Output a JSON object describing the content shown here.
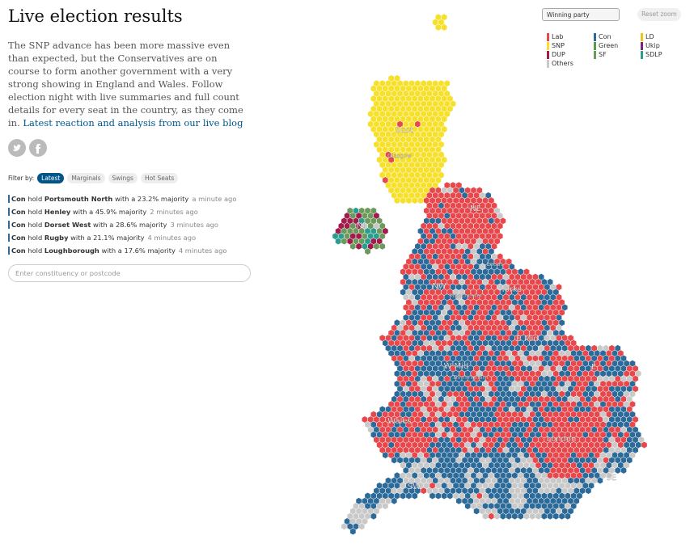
{
  "header": {
    "title": "Live election results",
    "intro": "The SNP advance has been more massive even than expected, but the Conservatives are on course to form another government with a very strong showing in England and Wales. Follow election night with live summaries and full count details for every seat in the country, as they come in.",
    "link": "Latest reaction and analysis from our live blog"
  },
  "filter": {
    "label": "Filter by:",
    "options": [
      "Latest",
      "Marginals",
      "Swings",
      "Hot Seats"
    ]
  },
  "results": [
    {
      "party": "Con",
      "action": "hold",
      "seat": "Portsmouth North",
      "detail": "with a 23.2% majority",
      "time": "a minute ago"
    },
    {
      "party": "Con",
      "action": "hold",
      "seat": "Henley",
      "detail": "with a 45.9% majority",
      "time": "2 minutes ago"
    },
    {
      "party": "Con",
      "action": "hold",
      "seat": "Dorset West",
      "detail": "with a 28.6% majority",
      "time": "3 minutes ago"
    },
    {
      "party": "Con",
      "action": "hold",
      "seat": "Rugby",
      "detail": "with a 21.1% majority",
      "time": "4 minutes ago"
    },
    {
      "party": "Con",
      "action": "hold",
      "seat": "Loughborough",
      "detail": "with a 17.6% majority",
      "time": "4 minutes ago"
    }
  ],
  "search": {
    "placeholder": "Enter constituency or postcode"
  },
  "controls": {
    "select": "Winning party",
    "reset": "Reset zoom"
  },
  "legend": [
    {
      "name": "Lab",
      "color": "#e8474c"
    },
    {
      "name": "Con",
      "color": "#2c6a99"
    },
    {
      "name": "LD",
      "color": "#f4c21a"
    },
    {
      "name": "SNP",
      "color": "#f7e02a"
    },
    {
      "name": "Green",
      "color": "#5a9b4b"
    },
    {
      "name": "Ukip",
      "color": "#7d2373"
    },
    {
      "name": "DUP",
      "color": "#a01c4c"
    },
    {
      "name": "SF",
      "color": "#6c9a5c"
    },
    {
      "name": "SDLP",
      "color": "#2a9d8f"
    },
    {
      "name": "Others",
      "color": "#c9c9c9"
    }
  ],
  "map": {
    "labels": [
      "Scot",
      "Glasgow",
      "NI",
      "NE",
      "Leeds",
      "NW",
      "Yorks",
      "Manchester",
      "E Mid",
      "W Mid",
      "Birmingham",
      "E",
      "Wales",
      "London",
      "SW",
      "SE"
    ]
  }
}
